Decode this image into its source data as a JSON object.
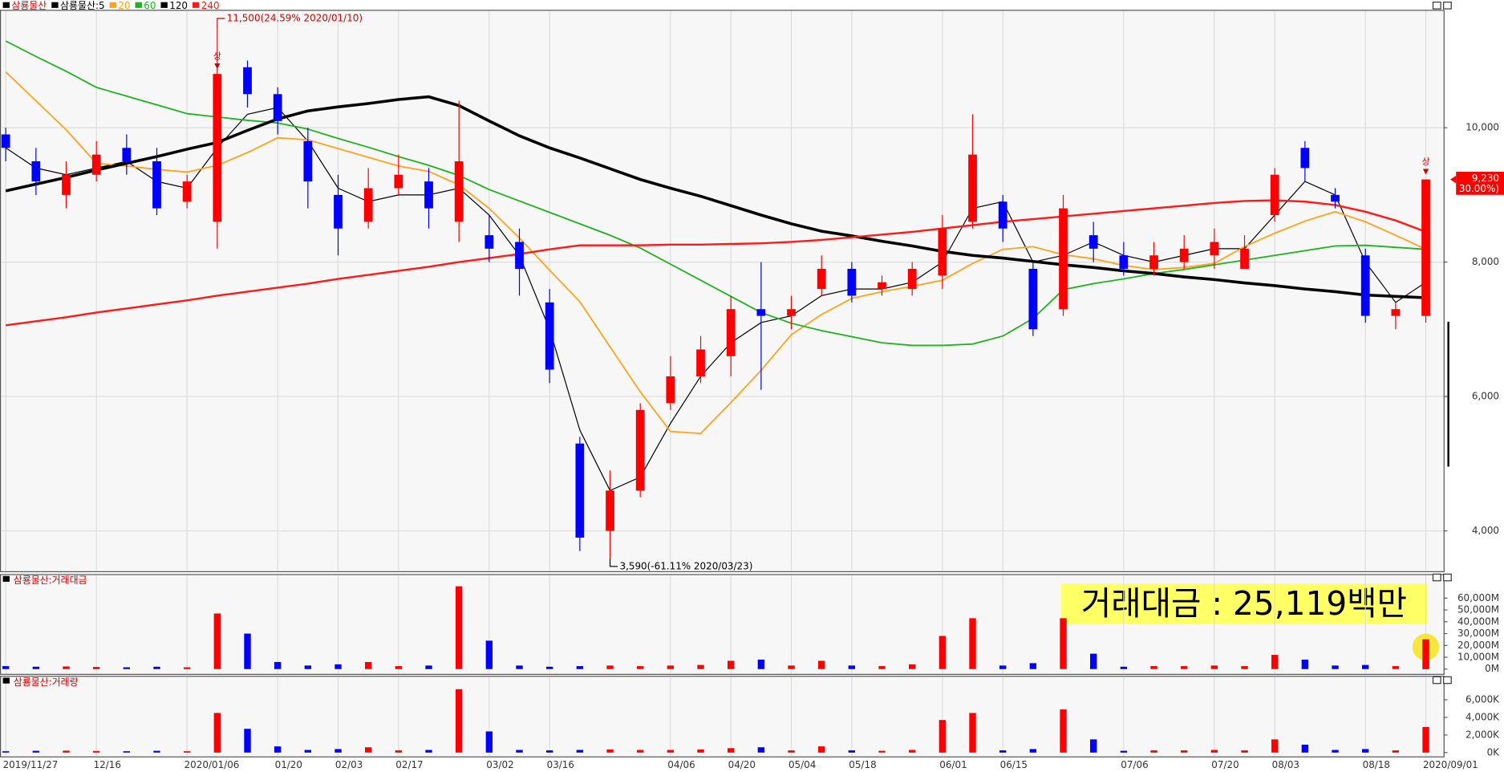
{
  "chart_data": {
    "type": "candlestick",
    "name": "삼룡물산",
    "up_color": "#ff0000",
    "down_color": "#0000ff",
    "categories": [
      "2019/11/27",
      null,
      null,
      "12/16",
      null,
      null,
      "2020/01/06",
      null,
      null,
      "01/20",
      null,
      "02/03",
      null,
      "02/17",
      null,
      null,
      "03/02",
      null,
      "03/16",
      null,
      null,
      null,
      "04/06",
      null,
      "04/20",
      null,
      "05/04",
      null,
      "05/18",
      null,
      null,
      "06/01",
      null,
      "06/15",
      null,
      null,
      null,
      "07/06",
      null,
      null,
      "07/20",
      null,
      "08/03",
      null,
      null,
      "08/18",
      null,
      "2020/09/01"
    ],
    "open": [
      9900,
      9500,
      9000,
      9300,
      9700,
      9500,
      8900,
      8600,
      10900,
      10500,
      9800,
      9000,
      8600,
      9100,
      9200,
      8600,
      8400,
      8300,
      7400,
      5300,
      4000,
      4600,
      5900,
      6300,
      6600,
      7300,
      7200,
      7600,
      7900,
      7600,
      7600,
      7800,
      8600,
      8900,
      7900,
      7300,
      8400,
      8100,
      7900,
      8000,
      8100,
      7900,
      8700,
      9700,
      9000,
      8100,
      7200,
      7200
    ],
    "high": [
      10000,
      9700,
      9500,
      9800,
      9900,
      9700,
      9300,
      11500,
      11000,
      10600,
      10000,
      9300,
      9400,
      9600,
      9400,
      10400,
      8700,
      8500,
      7600,
      5400,
      4900,
      5900,
      6600,
      6900,
      7500,
      8000,
      7500,
      8100,
      8000,
      7800,
      8000,
      8700,
      10200,
      9000,
      8000,
      9000,
      8600,
      8300,
      8300,
      8400,
      8500,
      8400,
      9400,
      9800,
      9100,
      8200,
      7400,
      9230
    ],
    "low": [
      9500,
      9000,
      8800,
      9200,
      9300,
      8700,
      8800,
      8200,
      10300,
      9900,
      8800,
      8100,
      8500,
      9000,
      8500,
      8300,
      8000,
      7500,
      6200,
      3700,
      3590,
      4500,
      5800,
      6200,
      6300,
      6100,
      7000,
      7500,
      7400,
      7500,
      7500,
      7600,
      8500,
      8300,
      6900,
      7200,
      8000,
      7800,
      7800,
      7900,
      7900,
      7900,
      8600,
      9200,
      8800,
      7100,
      7000,
      7100
    ],
    "close": [
      9700,
      9200,
      9300,
      9600,
      9500,
      8800,
      9200,
      10800,
      10500,
      10100,
      9200,
      8500,
      9100,
      9300,
      8800,
      9500,
      8200,
      7900,
      6400,
      3900,
      4600,
      5800,
      6300,
      6700,
      7300,
      7200,
      7300,
      7900,
      7500,
      7700,
      7900,
      8500,
      9600,
      8500,
      7000,
      8800,
      8200,
      7900,
      8100,
      8200,
      8300,
      8200,
      9300,
      9400,
      8900,
      7200,
      7300,
      9230
    ],
    "series": [
      {
        "name": "삼룡물산:5",
        "color": "#000000",
        "values": [
          9700,
          9400,
          9300,
          9400,
          9500,
          9200,
          9100,
          9700,
          10200,
          10300,
          9800,
          9100,
          8900,
          9000,
          9000,
          9100,
          8700,
          8100,
          7000,
          5500,
          4600,
          4800,
          5600,
          6300,
          6800,
          7100,
          7200,
          7500,
          7600,
          7600,
          7700,
          8000,
          8800,
          8900,
          8000,
          8100,
          8300,
          8100,
          8000,
          8100,
          8200,
          8200,
          8700,
          9200,
          9000,
          8000,
          7400,
          7700
        ]
      },
      {
        "name": "20",
        "color": "#ffa31a",
        "values": [
          10830,
          10400,
          9970,
          9470,
          9430,
          9380,
          9340,
          9440,
          9630,
          9850,
          9820,
          9690,
          9560,
          9430,
          9350,
          9150,
          8800,
          8360,
          7880,
          7410,
          6740,
          6070,
          5480,
          5450,
          5910,
          6390,
          6920,
          7220,
          7460,
          7560,
          7640,
          7730,
          7980,
          8190,
          8230,
          8110,
          8050,
          7950,
          7890,
          7920,
          7980,
          8230,
          8430,
          8610,
          8750,
          8600,
          8400,
          8190
        ]
      },
      {
        "name": "60",
        "color": "#1db31d",
        "values": [
          11290,
          11060,
          10840,
          10600,
          10470,
          10340,
          10210,
          10160,
          10110,
          10070,
          9980,
          9840,
          9710,
          9570,
          9440,
          9290,
          9080,
          8910,
          8740,
          8570,
          8400,
          8210,
          7970,
          7730,
          7490,
          7250,
          7090,
          6980,
          6890,
          6800,
          6760,
          6760,
          6780,
          6900,
          7160,
          7590,
          7680,
          7750,
          7830,
          7890,
          7960,
          8030,
          8100,
          8170,
          8240,
          8250,
          8220,
          8190
        ]
      },
      {
        "name": "120",
        "color": "#000000",
        "values": [
          9060,
          9160,
          9260,
          9370,
          9470,
          9570,
          9680,
          9780,
          9960,
          10130,
          10250,
          10310,
          10360,
          10420,
          10460,
          10330,
          10100,
          9880,
          9700,
          9550,
          9390,
          9230,
          9100,
          8980,
          8840,
          8700,
          8570,
          8460,
          8390,
          8310,
          8240,
          8160,
          8100,
          8060,
          8010,
          7960,
          7920,
          7870,
          7830,
          7780,
          7740,
          7690,
          7650,
          7600,
          7560,
          7510,
          7490,
          7470
        ]
      },
      {
        "name": "240",
        "color": "#ff1a1a",
        "values": [
          7060,
          7120,
          7180,
          7250,
          7310,
          7370,
          7430,
          7500,
          7560,
          7620,
          7680,
          7750,
          7810,
          7870,
          7930,
          8000,
          8060,
          8120,
          8190,
          8250,
          8250,
          8250,
          8260,
          8260,
          8270,
          8280,
          8300,
          8330,
          8370,
          8410,
          8450,
          8500,
          8550,
          8600,
          8640,
          8680,
          8720,
          8760,
          8800,
          8840,
          8880,
          8910,
          8920,
          8900,
          8850,
          8750,
          8620,
          8450
        ]
      }
    ],
    "ylim": [
      3400,
      11740
    ],
    "yticks": [
      {
        "value": 4000,
        "label": "4,000"
      },
      {
        "value": 6000,
        "label": "6,000"
      },
      {
        "value": 8000,
        "label": "8,000"
      },
      {
        "value": 10000,
        "label": "10,000"
      }
    ],
    "grid": true,
    "max_label": "11,500(24.59% 2020/01/10)",
    "min_label": "3,590(-61.11% 2020/03/23)",
    "markers": [
      {
        "text": "상",
        "index": 7
      },
      {
        "text": "상",
        "index": 47
      }
    ],
    "last_price_label": "9,230",
    "last_change_label": "( 30.00%)",
    "trade_value": {
      "title": "삼룡물산:거래대금",
      "highlight_label": "거래대금 : 25,119백만",
      "values": [
        2500,
        2000,
        2200,
        1800,
        1500,
        2000,
        1500,
        47000,
        30000,
        6000,
        3000,
        4000,
        6000,
        2500,
        3000,
        70000,
        24000,
        3000,
        2000,
        2500,
        3000,
        2500,
        3000,
        3500,
        7000,
        8000,
        3000,
        7000,
        3000,
        2500,
        4000,
        28000,
        43000,
        3000,
        5000,
        43000,
        13000,
        2000,
        2500,
        2500,
        3000,
        2500,
        12000,
        8000,
        3000,
        3500,
        2500,
        25119
      ],
      "ylim": [
        0,
        73000
      ],
      "yticks": [
        {
          "value": 0,
          "label": "0M"
        },
        {
          "value": 10000,
          "label": "10,000M"
        },
        {
          "value": 20000,
          "label": "20,000M"
        },
        {
          "value": 30000,
          "label": "30,000M"
        },
        {
          "value": 40000,
          "label": "40,000M"
        },
        {
          "value": 50000,
          "label": "50,000M"
        },
        {
          "value": 60000,
          "label": "60,000M"
        }
      ]
    },
    "volume": {
      "title": "삼룡물산:거래량",
      "values": [
        150,
        200,
        220,
        180,
        150,
        200,
        150,
        4500,
        2700,
        700,
        300,
        400,
        600,
        250,
        300,
        7200,
        2400,
        300,
        250,
        300,
        350,
        300,
        300,
        350,
        500,
        600,
        250,
        700,
        250,
        200,
        300,
        3700,
        4500,
        250,
        400,
        4900,
        1500,
        200,
        250,
        250,
        300,
        250,
        1500,
        900,
        300,
        400,
        250,
        2900
      ],
      "ylim": [
        0,
        7850
      ],
      "yticks": [
        {
          "value": 0,
          "label": "0K"
        },
        {
          "value": 2000,
          "label": "2,000K"
        },
        {
          "value": 4000,
          "label": "4,000K"
        },
        {
          "value": 6000,
          "label": "6,000K"
        }
      ]
    }
  }
}
